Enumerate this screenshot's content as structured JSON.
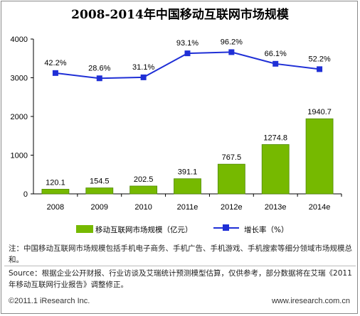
{
  "title": "2008-2014年中国移动互联网市场规模",
  "chart_data": {
    "type": "bar",
    "categories": [
      "2008",
      "2009",
      "2010",
      "2011e",
      "2012e",
      "2013e",
      "2014e"
    ],
    "series": [
      {
        "name": "移动互联网市场规模（亿元）",
        "type": "bar",
        "values": [
          120.1,
          154.5,
          202.5,
          391.1,
          767.5,
          1274.8,
          1940.7
        ]
      },
      {
        "name": "增长率（%）",
        "type": "line",
        "values": [
          42.2,
          28.6,
          31.1,
          93.1,
          96.2,
          66.1,
          52.2
        ]
      }
    ],
    "bar_labels": [
      "120.1",
      "154.5",
      "202.5",
      "391.1",
      "767.5",
      "1274.8",
      "1940.7"
    ],
    "line_labels": [
      "42.2%",
      "28.6%",
      "31.1%",
      "93.1%",
      "96.2%",
      "66.1%",
      "52.2%"
    ],
    "y_ticks": [
      "0",
      "1000",
      "2000",
      "3000",
      "4000"
    ],
    "ylim": [
      0,
      4000
    ],
    "grid": false,
    "legend_position": "bottom",
    "colors": {
      "bar": "#76b900",
      "bar_dark": "#4f8a00",
      "line": "#1f2fd6"
    }
  },
  "legend": {
    "bar_label": "移动互联网市场规模（亿元）",
    "line_label": "增长率（%）"
  },
  "notes": {
    "note": "注：中国移动互联网市场规模包括手机电子商务、手机广告、手机游戏、手机搜索等细分领域市场规模总和。",
    "source": "Source：根据企业公开财报、行业访谈及艾瑞统计预测模型估算，仅供参考，部分数据将在艾瑞《2011年移动互联网行业报告》调整修正。"
  },
  "footer": {
    "copyright": "©2011.1 iResearch Inc.",
    "website": "www.iresearch.com.cn"
  }
}
